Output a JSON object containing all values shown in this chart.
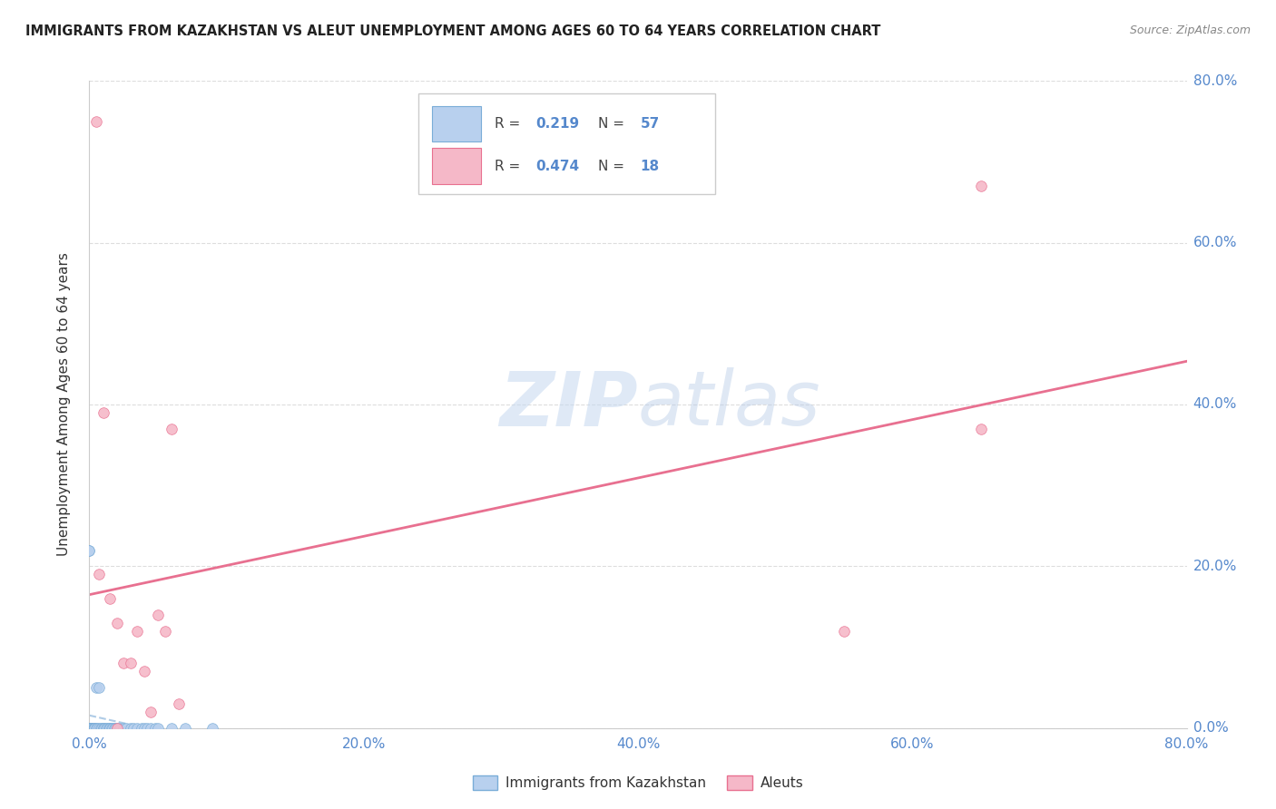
{
  "title": "IMMIGRANTS FROM KAZAKHSTAN VS ALEUT UNEMPLOYMENT AMONG AGES 60 TO 64 YEARS CORRELATION CHART",
  "source": "Source: ZipAtlas.com",
  "ylabel": "Unemployment Among Ages 60 to 64 years",
  "xlim": [
    0.0,
    0.8
  ],
  "ylim": [
    0.0,
    0.8
  ],
  "kazakhstan_x": [
    0.0,
    0.0,
    0.0,
    0.0,
    0.001,
    0.001,
    0.001,
    0.001,
    0.001,
    0.001,
    0.002,
    0.002,
    0.002,
    0.002,
    0.002,
    0.002,
    0.003,
    0.003,
    0.003,
    0.004,
    0.004,
    0.004,
    0.005,
    0.005,
    0.006,
    0.007,
    0.007,
    0.008,
    0.009,
    0.01,
    0.01,
    0.011,
    0.012,
    0.013,
    0.014,
    0.015,
    0.015,
    0.016,
    0.017,
    0.018,
    0.019,
    0.02,
    0.022,
    0.025,
    0.027,
    0.03,
    0.032,
    0.035,
    0.038,
    0.04,
    0.042,
    0.045,
    0.048,
    0.05,
    0.06,
    0.07,
    0.09
  ],
  "kazakhstan_y": [
    0.22,
    0.22,
    0.0,
    0.0,
    0.0,
    0.0,
    0.0,
    0.0,
    0.0,
    0.0,
    0.0,
    0.0,
    0.0,
    0.0,
    0.0,
    0.0,
    0.0,
    0.0,
    0.0,
    0.0,
    0.0,
    0.0,
    0.0,
    0.05,
    0.0,
    0.0,
    0.05,
    0.0,
    0.0,
    0.0,
    0.0,
    0.0,
    0.0,
    0.0,
    0.0,
    0.0,
    0.0,
    0.0,
    0.0,
    0.0,
    0.0,
    0.0,
    0.0,
    0.0,
    0.0,
    0.0,
    0.0,
    0.0,
    0.0,
    0.0,
    0.0,
    0.0,
    0.0,
    0.0,
    0.0,
    0.0,
    0.0
  ],
  "aleut_x": [
    0.005,
    0.007,
    0.01,
    0.015,
    0.02,
    0.02,
    0.025,
    0.03,
    0.035,
    0.04,
    0.045,
    0.05,
    0.055,
    0.06,
    0.065,
    0.55,
    0.65,
    0.65
  ],
  "aleut_y": [
    0.75,
    0.19,
    0.39,
    0.16,
    0.13,
    0.0,
    0.08,
    0.08,
    0.12,
    0.07,
    0.02,
    0.14,
    0.12,
    0.37,
    0.03,
    0.12,
    0.67,
    0.37
  ],
  "R_kazakhstan": 0.219,
  "N_kazakhstan": 57,
  "R_aleut": 0.474,
  "N_aleut": 18,
  "color_kazakhstan": "#b8d0ee",
  "color_aleut": "#f5b8c8",
  "edge_kazakhstan": "#7aadd8",
  "edge_aleut": "#e87090",
  "line_kazakhstan_color": "#9bbfe0",
  "line_aleut_color": "#e87090",
  "tick_color": "#5588cc",
  "title_color": "#222222",
  "source_color": "#888888",
  "ylabel_color": "#333333",
  "watermark_color": "#d0e4f5",
  "grid_color": "#dddddd",
  "legend_box_color": "#eeeeee",
  "background": "#ffffff"
}
